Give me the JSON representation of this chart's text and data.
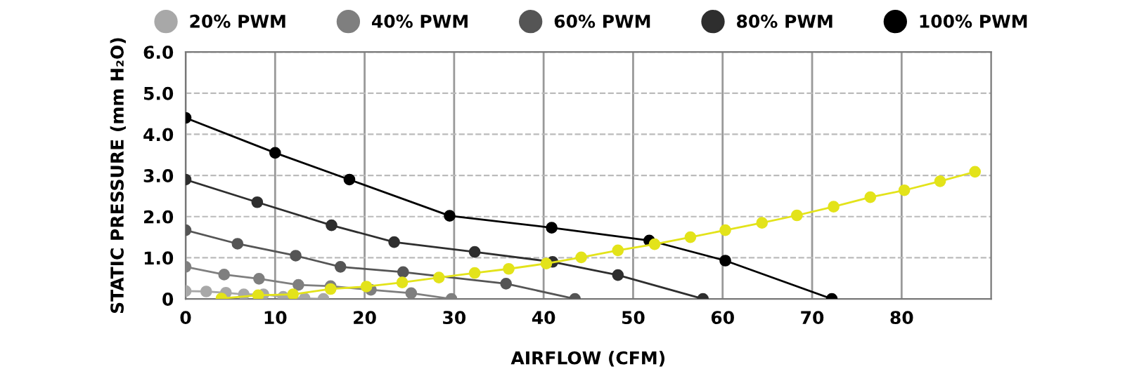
{
  "chart_data": {
    "type": "line",
    "xlabel": "AIRFLOW (CFM)",
    "ylabel": "STATIC PRESSURE (mm H₂O)",
    "xlim": [
      0,
      90
    ],
    "xticks": [
      0,
      10,
      20,
      30,
      40,
      50,
      60,
      70,
      80
    ],
    "ylim": [
      0,
      6
    ],
    "yticks": [
      {
        "value": 0,
        "label": "0"
      },
      {
        "value": 1,
        "label": "1.0"
      },
      {
        "value": 2,
        "label": "2.0"
      },
      {
        "value": 3,
        "label": "3.0"
      },
      {
        "value": 4,
        "label": "4.0"
      },
      {
        "value": 5,
        "label": "5.0"
      },
      {
        "value": 6,
        "label": "6.0"
      }
    ],
    "grid": true,
    "legend": "top",
    "marker": "circle",
    "line_style": "solid",
    "series": [
      {
        "color": "#e3e31a",
        "x": [
          4,
          8.1,
          12,
          16.2,
          20.2,
          24.2,
          28.3,
          32.3,
          36.1,
          40.3,
          44.2,
          48.3,
          52.4,
          56.4,
          60.3,
          64.4,
          68.3,
          72.4,
          76.5,
          80.3,
          84.3,
          88.2
        ],
        "values": [
          0.01,
          0.09,
          0.11,
          0.24,
          0.3,
          0.4,
          0.52,
          0.63,
          0.73,
          0.86,
          1.01,
          1.18,
          1.33,
          1.5,
          1.67,
          1.85,
          2.03,
          2.24,
          2.47,
          2.64,
          2.86,
          3.09
        ]
      },
      {
        "name": "20% PWM",
        "color": "#a8a8a8",
        "x": [
          0,
          2.3,
          4.5,
          6.5,
          8.7,
          10.9,
          13.3,
          15.4
        ],
        "values": [
          0.19,
          0.18,
          0.15,
          0.11,
          0.11,
          0.05,
          0.01,
          0
        ]
      },
      {
        "name": "40% PWM",
        "color": "#7f7f7f",
        "x": [
          0,
          4.3,
          8.2,
          12.6,
          16.2,
          20.7,
          25.2,
          29.7
        ],
        "values": [
          0.78,
          0.59,
          0.49,
          0.34,
          0.31,
          0.22,
          0.14,
          0
        ]
      },
      {
        "name": "60% PWM",
        "color": "#555555",
        "x": [
          0,
          5.8,
          12.3,
          17.3,
          24.3,
          35.8,
          43.5
        ],
        "values": [
          1.67,
          1.34,
          1.05,
          0.78,
          0.65,
          0.37,
          0
        ]
      },
      {
        "name": "80% PWM",
        "color": "#2e2e2e",
        "x": [
          0,
          8,
          16.3,
          23.3,
          32.3,
          41,
          48.3,
          57.8
        ],
        "values": [
          2.9,
          2.35,
          1.79,
          1.38,
          1.14,
          0.9,
          0.58,
          0
        ]
      },
      {
        "name": "100% PWM",
        "color": "#000000",
        "x": [
          0,
          10,
          18.3,
          29.5,
          40.9,
          51.8,
          60.3,
          72.2
        ],
        "values": [
          4.4,
          3.55,
          2.9,
          2.02,
          1.73,
          1.42,
          0.93,
          0
        ]
      }
    ]
  }
}
